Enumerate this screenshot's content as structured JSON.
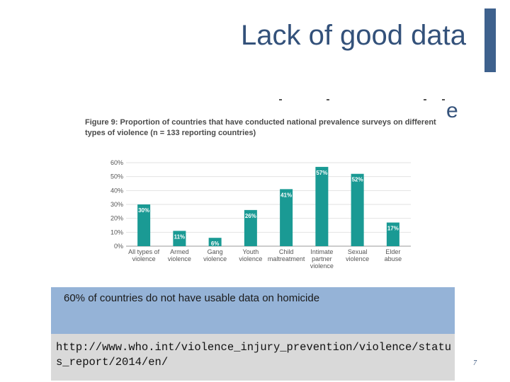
{
  "slide": {
    "title": "Lack of good data",
    "stray_glyph": "e",
    "note": "60% of countries do not have usable data on homicide",
    "source_url": "http://www.who.int/violence_injury_prevention/violence/status_report/2014/en/",
    "page_number": "7",
    "colors": {
      "title": "#33517a",
      "accent_bar": "#3e618d",
      "note_box": "#95b3d7",
      "source_box": "#d9d9d9"
    }
  },
  "chart_data": {
    "type": "bar",
    "title": "Figure 9: Proportion of countries that have conducted national prevalence surveys on different types of violence (n = 133 reporting countries)",
    "categories": [
      [
        "All types of",
        "violence"
      ],
      [
        "Armed",
        "violence"
      ],
      [
        "Gang",
        "violence"
      ],
      [
        "Youth",
        "violence"
      ],
      [
        "Child",
        "maltreatment"
      ],
      [
        "Intimate",
        "partner",
        "violence"
      ],
      [
        "Sexual",
        "violence"
      ],
      [
        "Elder",
        "abuse"
      ]
    ],
    "values": [
      30,
      11,
      6,
      26,
      41,
      57,
      52,
      17
    ],
    "data_labels": [
      "30%",
      "11%",
      "6%",
      "26%",
      "41%",
      "57%",
      "52%",
      "17%"
    ],
    "yticks": [
      "0%",
      "10%",
      "20%",
      "30%",
      "40%",
      "50%",
      "60%"
    ],
    "ylim": [
      0,
      60
    ],
    "grid": true,
    "bar_color": "#1a9a94"
  }
}
